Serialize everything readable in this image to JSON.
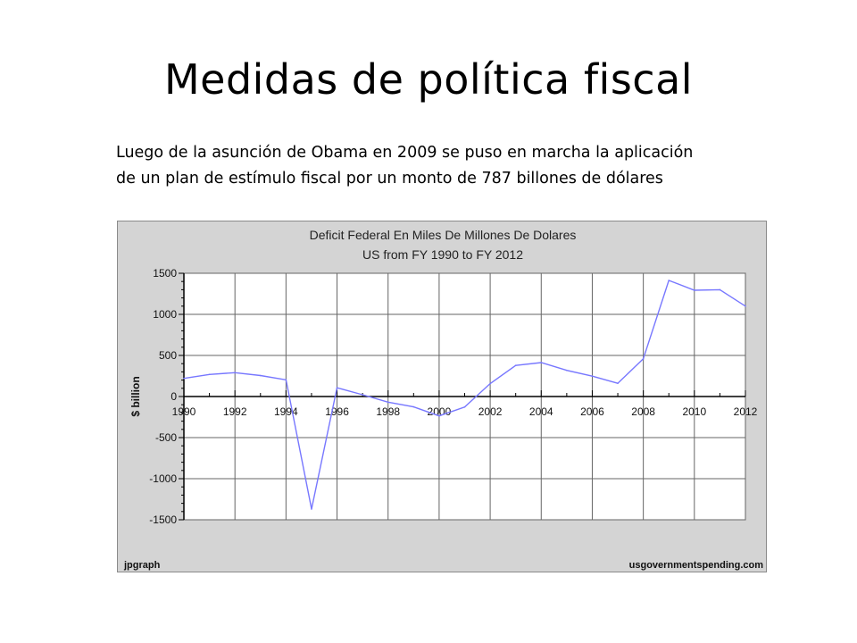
{
  "slide": {
    "title": "Medidas de política fiscal",
    "text_line1": "Luego de la asunción de Obama en 2009 se puso en marcha la aplicación",
    "text_line2": "de un plan de estímulo fiscal por un monto de 787 billones de dólares"
  },
  "chart_data": {
    "type": "line",
    "title": "Deficit Federal En Miles De Millones De Dolares",
    "subtitle": "US from FY 1990 to FY 2012",
    "ylabel": "$ billion",
    "xlabel": "",
    "ylim": [
      -1500,
      1500
    ],
    "xlim": [
      1990,
      2012
    ],
    "yticks": [
      1500,
      1000,
      500,
      0,
      -500,
      -1000,
      -1500
    ],
    "xticks": [
      1990,
      1992,
      1994,
      1996,
      1998,
      2000,
      2002,
      2004,
      2006,
      2008,
      2010,
      2012
    ],
    "grid": true,
    "series": [
      {
        "x": [
          1990,
          1991,
          1992,
          1993,
          1994,
          1995,
          1996,
          1997,
          1998,
          1999,
          2000,
          2001,
          2002,
          2003,
          2004,
          2005,
          2006,
          2007,
          2008,
          2009,
          2010,
          2011,
          2012
        ],
        "values": [
          221,
          269,
          290,
          255,
          203,
          -1370,
          107,
          22,
          -69,
          -126,
          -236,
          -128,
          158,
          378,
          413,
          318,
          248,
          161,
          459,
          1413,
          1294,
          1300,
          1100
        ],
        "color": "#7777ff"
      }
    ],
    "footer_left": "jpgraph",
    "footer_right": "usgovernmentspending.com"
  }
}
